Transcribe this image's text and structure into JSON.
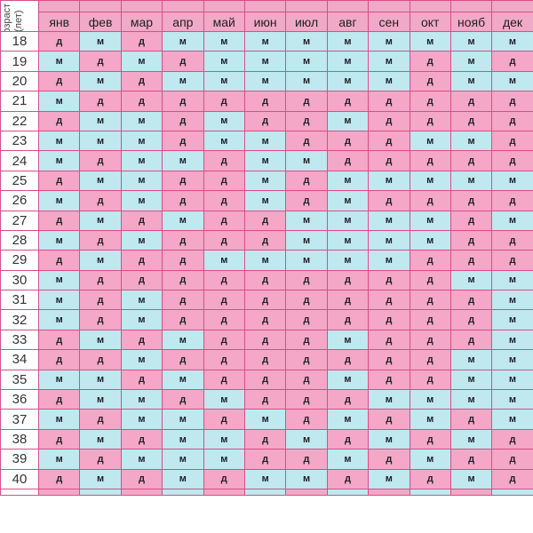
{
  "corner_label_line1": "Возраст",
  "corner_label_line2": "(лет)",
  "months": [
    "янв",
    "фев",
    "мар",
    "апр",
    "май",
    "июн",
    "июл",
    "авг",
    "сен",
    "окт",
    "нояб",
    "дек"
  ],
  "colors": {
    "girl_cell": "#f4a7c6",
    "boy_cell": "#bfe8ef",
    "border": "#d84e88"
  },
  "legend_values": {
    "girl": "д",
    "boy": "м"
  },
  "rows": [
    {
      "age": "18",
      "cells": [
        "д",
        "м",
        "д",
        "м",
        "м",
        "м",
        "м",
        "м",
        "м",
        "м",
        "м",
        "м"
      ]
    },
    {
      "age": "19",
      "cells": [
        "м",
        "д",
        "м",
        "д",
        "м",
        "м",
        "м",
        "м",
        "м",
        "д",
        "м",
        "д"
      ]
    },
    {
      "age": "20",
      "cells": [
        "д",
        "м",
        "д",
        "м",
        "м",
        "м",
        "м",
        "м",
        "м",
        "д",
        "м",
        "м"
      ]
    },
    {
      "age": "21",
      "cells": [
        "м",
        "д",
        "д",
        "д",
        "д",
        "д",
        "д",
        "д",
        "д",
        "д",
        "д",
        "д"
      ]
    },
    {
      "age": "22",
      "cells": [
        "д",
        "м",
        "м",
        "д",
        "м",
        "д",
        "д",
        "м",
        "д",
        "д",
        "д",
        "д"
      ]
    },
    {
      "age": "23",
      "cells": [
        "м",
        "м",
        "м",
        "д",
        "м",
        "м",
        "д",
        "д",
        "д",
        "м",
        "м",
        "д"
      ]
    },
    {
      "age": "24",
      "cells": [
        "м",
        "д",
        "м",
        "м",
        "д",
        "м",
        "м",
        "д",
        "д",
        "д",
        "д",
        "д"
      ]
    },
    {
      "age": "25",
      "cells": [
        "д",
        "м",
        "м",
        "д",
        "д",
        "м",
        "д",
        "м",
        "м",
        "м",
        "м",
        "м"
      ]
    },
    {
      "age": "26",
      "cells": [
        "м",
        "д",
        "м",
        "д",
        "д",
        "м",
        "д",
        "м",
        "д",
        "д",
        "д",
        "д"
      ]
    },
    {
      "age": "27",
      "cells": [
        "д",
        "м",
        "д",
        "м",
        "д",
        "д",
        "м",
        "м",
        "м",
        "м",
        "д",
        "м"
      ]
    },
    {
      "age": "28",
      "cells": [
        "м",
        "д",
        "м",
        "д",
        "д",
        "д",
        "м",
        "м",
        "м",
        "м",
        "д",
        "д"
      ]
    },
    {
      "age": "29",
      "cells": [
        "д",
        "м",
        "д",
        "д",
        "м",
        "м",
        "м",
        "м",
        "м",
        "д",
        "д",
        "д"
      ]
    },
    {
      "age": "30",
      "cells": [
        "м",
        "д",
        "д",
        "д",
        "д",
        "д",
        "д",
        "д",
        "д",
        "д",
        "м",
        "м"
      ]
    },
    {
      "age": "31",
      "cells": [
        "м",
        "д",
        "м",
        "д",
        "д",
        "д",
        "д",
        "д",
        "д",
        "д",
        "д",
        "м"
      ]
    },
    {
      "age": "32",
      "cells": [
        "м",
        "д",
        "м",
        "д",
        "д",
        "д",
        "д",
        "д",
        "д",
        "д",
        "д",
        "м"
      ]
    },
    {
      "age": "33",
      "cells": [
        "д",
        "м",
        "д",
        "м",
        "д",
        "д",
        "д",
        "м",
        "д",
        "д",
        "д",
        "м"
      ]
    },
    {
      "age": "34",
      "cells": [
        "д",
        "д",
        "м",
        "д",
        "д",
        "д",
        "д",
        "д",
        "д",
        "д",
        "м",
        "м"
      ]
    },
    {
      "age": "35",
      "cells": [
        "м",
        "м",
        "д",
        "м",
        "д",
        "д",
        "д",
        "м",
        "д",
        "д",
        "м",
        "м"
      ]
    },
    {
      "age": "36",
      "cells": [
        "д",
        "м",
        "м",
        "д",
        "м",
        "д",
        "д",
        "д",
        "м",
        "м",
        "м",
        "м"
      ]
    },
    {
      "age": "37",
      "cells": [
        "м",
        "д",
        "м",
        "м",
        "д",
        "м",
        "д",
        "м",
        "д",
        "м",
        "д",
        "м"
      ]
    },
    {
      "age": "38",
      "cells": [
        "д",
        "м",
        "д",
        "м",
        "м",
        "д",
        "м",
        "д",
        "м",
        "д",
        "м",
        "д"
      ]
    },
    {
      "age": "39",
      "cells": [
        "м",
        "д",
        "м",
        "м",
        "м",
        "д",
        "д",
        "м",
        "д",
        "м",
        "д",
        "д"
      ]
    },
    {
      "age": "40",
      "cells": [
        "д",
        "м",
        "д",
        "м",
        "д",
        "м",
        "м",
        "д",
        "м",
        "д",
        "м",
        "д"
      ]
    }
  ]
}
